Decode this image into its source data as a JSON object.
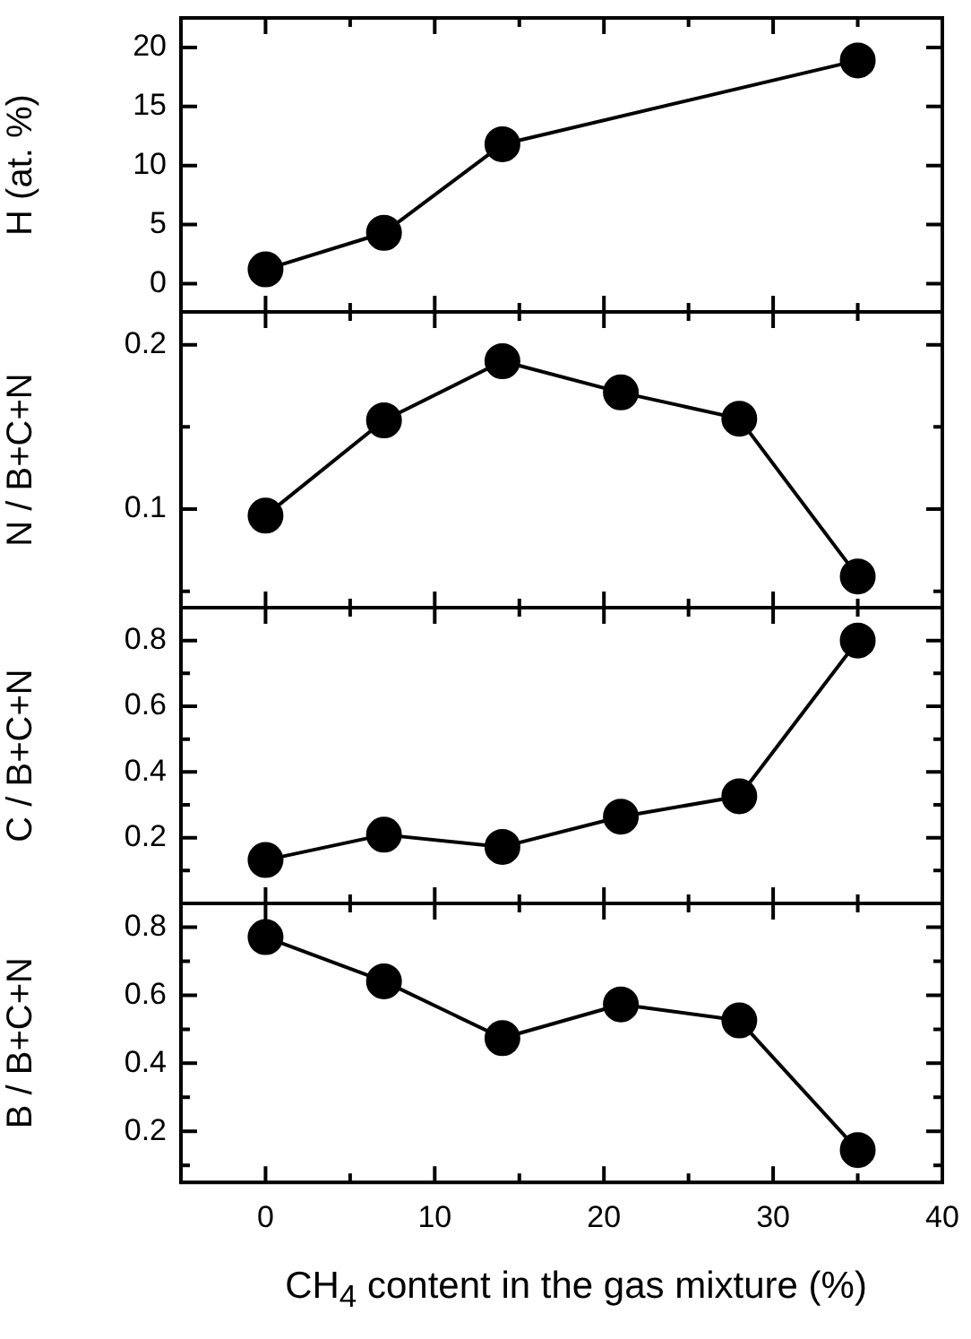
{
  "chart_data": [
    {
      "type": "line",
      "ylabel": "H (at. %)",
      "x": [
        0,
        7,
        14,
        35
      ],
      "series": [
        {
          "color": "#000000",
          "values": [
            1.2,
            4.3,
            11.8,
            18.9
          ]
        }
      ],
      "xlim": [
        -5,
        40
      ],
      "xticks": [
        0,
        {
          "value": 5,
          "label": null
        },
        10,
        {
          "value": 15,
          "label": null
        },
        20,
        {
          "value": 25,
          "label": null
        },
        30,
        {
          "value": 35,
          "label": null
        },
        40
      ],
      "ylim": [
        -2.4,
        22.5
      ],
      "yticks": [
        0,
        5,
        10,
        15,
        20
      ],
      "tick_labels": "y",
      "marker": "circle",
      "line_style": "solid"
    },
    {
      "type": "line",
      "ylabel": "N / B+C+N",
      "x": [
        0,
        7,
        14,
        21,
        28,
        35
      ],
      "series": [
        {
          "color": "#000000",
          "values": [
            0.096,
            0.154,
            0.19,
            0.171,
            0.155,
            0.059
          ]
        }
      ],
      "xlim": [
        -5,
        40
      ],
      "xticks": [
        0,
        {
          "value": 5,
          "label": null
        },
        10,
        {
          "value": 15,
          "label": null
        },
        20,
        {
          "value": 25,
          "label": null
        },
        30,
        {
          "value": 35,
          "label": null
        },
        40
      ],
      "ylim": [
        0.04,
        0.22
      ],
      "yticks": [
        {
          "value": 0.05,
          "label": null
        },
        0.1,
        {
          "value": 0.15,
          "label": null
        },
        0.2
      ],
      "tick_labels": "y",
      "marker": "circle",
      "line_style": "solid"
    },
    {
      "type": "line",
      "ylabel": "C / B+C+N",
      "x": [
        0,
        7,
        14,
        21,
        28,
        35
      ],
      "series": [
        {
          "color": "#000000",
          "values": [
            0.132,
            0.209,
            0.172,
            0.264,
            0.326,
            0.8
          ]
        }
      ],
      "xlim": [
        -5,
        40
      ],
      "xticks": [
        0,
        {
          "value": 5,
          "label": null
        },
        10,
        {
          "value": 15,
          "label": null
        },
        20,
        {
          "value": 25,
          "label": null
        },
        30,
        {
          "value": 35,
          "label": null
        },
        40
      ],
      "ylim": [
        0,
        0.9
      ],
      "yticks": [
        {
          "value": 0.1,
          "label": null
        },
        0.2,
        {
          "value": 0.3,
          "label": null
        },
        0.4,
        {
          "value": 0.5,
          "label": null
        },
        0.6,
        {
          "value": 0.7,
          "label": null
        },
        0.8
      ],
      "tick_labels": "y",
      "marker": "circle",
      "line_style": "solid"
    },
    {
      "type": "line",
      "ylabel": "B / B+C+N",
      "xlabel": "CH$_{4}$ content in the gas mixture (%)",
      "x": [
        0,
        7,
        14,
        21,
        28,
        35
      ],
      "series": [
        {
          "color": "#000000",
          "values": [
            0.771,
            0.641,
            0.474,
            0.573,
            0.526,
            0.145
          ]
        }
      ],
      "xlim": [
        -5,
        40
      ],
      "xticks": [
        0,
        {
          "value": 5,
          "label": null
        },
        10,
        {
          "value": 15,
          "label": null
        },
        20,
        {
          "value": 25,
          "label": null
        },
        30,
        {
          "value": 35,
          "label": null
        },
        40
      ],
      "ylim": [
        0.05,
        0.87
      ],
      "yticks": [
        {
          "value": 0.1,
          "label": null
        },
        0.2,
        {
          "value": 0.3,
          "label": null
        },
        0.4,
        {
          "value": 0.5,
          "label": null
        },
        0.6,
        {
          "value": 0.7,
          "label": null
        },
        0.8
      ],
      "marker": "circle",
      "line_style": "solid"
    }
  ]
}
